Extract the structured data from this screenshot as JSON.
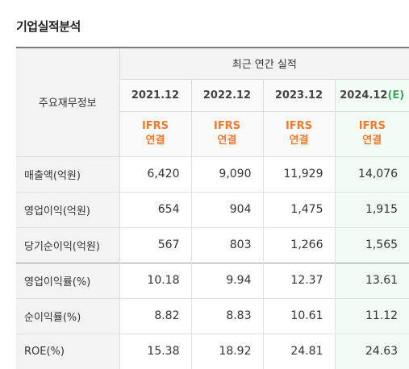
{
  "title": "기업실적분석",
  "header": {
    "row_header": "주요재무정보",
    "group_label": "최근 연간 실적",
    "years": [
      "2021.12",
      "2022.12",
      "2023.12",
      "2024.12"
    ],
    "estimate_mark": "(E)",
    "ifrs_line1": "IFRS",
    "ifrs_line2": "연결"
  },
  "rows": [
    {
      "label": "매출액(억원)",
      "values": [
        "6,420",
        "9,090",
        "11,929",
        "14,076"
      ]
    },
    {
      "label": "영업이익(억원)",
      "values": [
        "654",
        "904",
        "1,475",
        "1,915"
      ]
    },
    {
      "label": "당기순이익(억원)",
      "values": [
        "567",
        "803",
        "1,266",
        "1,565"
      ]
    },
    {
      "label": "영업이익률(%)",
      "values": [
        "10.18",
        "9.94",
        "12.37",
        "13.61"
      ]
    },
    {
      "label": "순이익률(%)",
      "values": [
        "8.82",
        "8.83",
        "10.61",
        "11.12"
      ]
    },
    {
      "label": "ROE(%)",
      "values": [
        "15.38",
        "18.92",
        "24.81",
        "24.63"
      ]
    }
  ],
  "colors": {
    "ifrs": "#f5792a",
    "estimate": "#39a85b",
    "estimate_bg": "#f3fbf5"
  }
}
